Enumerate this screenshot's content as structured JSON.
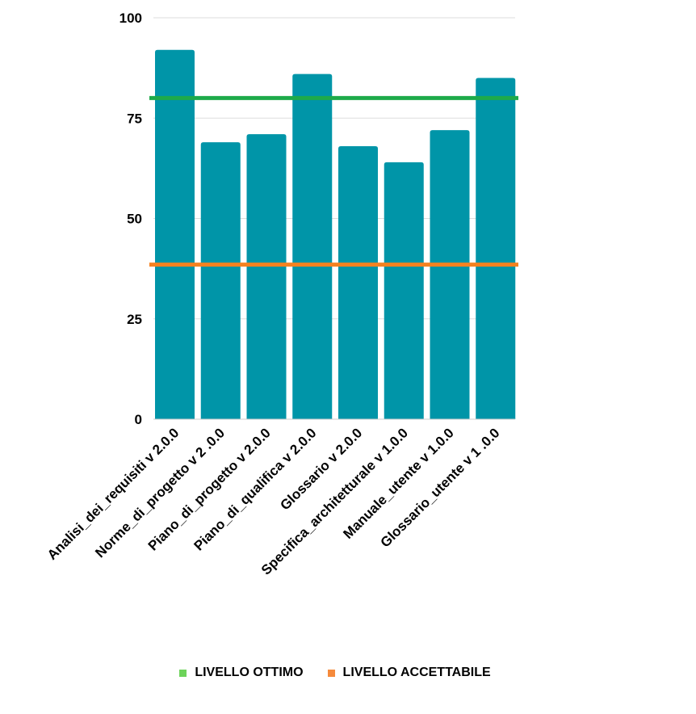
{
  "chart_data": {
    "type": "bar",
    "categories": [
      "Analisi_dei_requisiti v 2.0.0",
      "Norme_di_progetto v 2 .0.0",
      "Piano_di_progetto v 2.0.0",
      "Piano_di_qualifica v 2.0.0",
      "Glossario v 2.0.0",
      "Specifica_architetturale v 1.0.0",
      "Manuale_utente v 1.0.0",
      "Glossario_utente v 1 .0.0"
    ],
    "values": [
      92,
      69,
      71,
      86,
      68,
      64,
      72,
      85
    ],
    "bar_color": "#0095A8",
    "ylim": [
      0,
      100
    ],
    "yticks": [
      "0",
      "25",
      "50",
      "75",
      "100"
    ],
    "ytick_values": [
      0,
      25,
      50,
      75,
      100
    ],
    "grid": true,
    "reference_lines": [
      {
        "name": "LIVELLO OTTIMO",
        "value": 80,
        "color": "#1EAA4A",
        "legend_color": "#6DD35A"
      },
      {
        "name": "LIVELLO ACCETTABILE",
        "value": 38.5,
        "color": "#F58220",
        "legend_color": "#F58A3C"
      }
    ],
    "legend_position": "bottom"
  }
}
